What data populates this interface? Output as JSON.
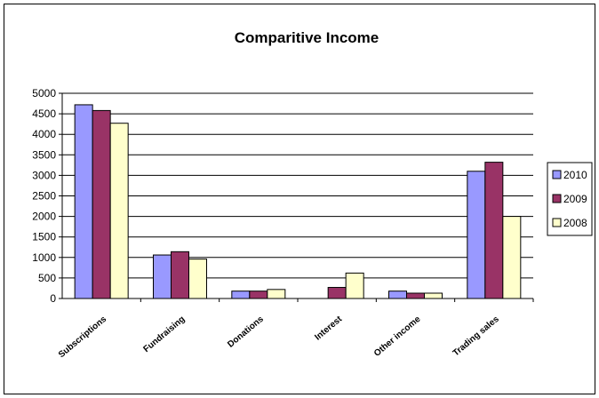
{
  "chart_data": {
    "type": "bar",
    "title": "Comparitive Income",
    "xlabel": "",
    "ylabel": "",
    "ylim": [
      0,
      5000
    ],
    "yticks": [
      0,
      500,
      1000,
      1500,
      2000,
      2500,
      3000,
      3500,
      4000,
      4500,
      5000
    ],
    "categories": [
      "Subscriptions",
      "Fundraising",
      "Donations",
      "Interest",
      "Other income",
      "Trading sales"
    ],
    "series": [
      {
        "name": "2010",
        "color": "#9999ff",
        "values": [
          4720,
          1060,
          180,
          0,
          180,
          3100
        ]
      },
      {
        "name": "2009",
        "color": "#993366",
        "values": [
          4580,
          1140,
          180,
          270,
          130,
          3320
        ]
      },
      {
        "name": "2008",
        "color": "#ffffcc",
        "values": [
          4270,
          960,
          220,
          620,
          130,
          2000
        ]
      }
    ],
    "grid": true,
    "legend": "right"
  }
}
